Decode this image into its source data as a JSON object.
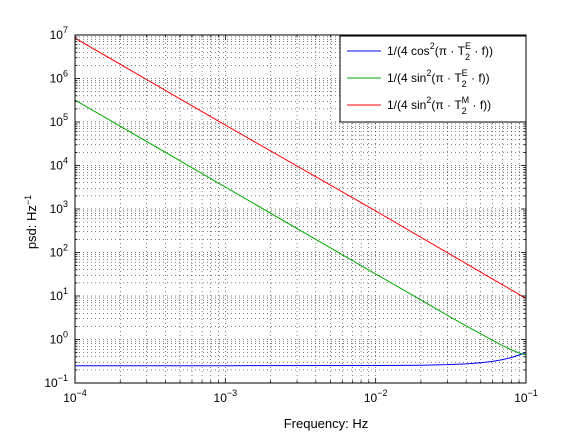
{
  "chart_data": {
    "type": "line",
    "xlabel": "Frequency: Hz",
    "ylabel": "psd: Hz",
    "ylabel_exponent": "−1",
    "xscale": "log",
    "yscale": "log",
    "xlim": [
      0.0001,
      0.1
    ],
    "ylim": [
      0.1,
      10000000
    ],
    "x_ticks": [
      {
        "value": 0.0001,
        "base": "10",
        "exp": "−4"
      },
      {
        "value": 0.001,
        "base": "10",
        "exp": "−3"
      },
      {
        "value": 0.01,
        "base": "10",
        "exp": "−2"
      },
      {
        "value": 0.1,
        "base": "10",
        "exp": "−1"
      }
    ],
    "y_ticks": [
      {
        "value": 0.1,
        "base": "10",
        "exp": "−1"
      },
      {
        "value": 1,
        "base": "10",
        "exp": "0"
      },
      {
        "value": 10,
        "base": "10",
        "exp": "1"
      },
      {
        "value": 100,
        "base": "10",
        "exp": "2"
      },
      {
        "value": 1000,
        "base": "10",
        "exp": "3"
      },
      {
        "value": 10000,
        "base": "10",
        "exp": "4"
      },
      {
        "value": 100000,
        "base": "10",
        "exp": "5"
      },
      {
        "value": 1000000,
        "base": "10",
        "exp": "6"
      },
      {
        "value": 10000000,
        "base": "10",
        "exp": "7"
      }
    ],
    "grid": true,
    "legend_position": "top-right",
    "series": [
      {
        "legend": {
          "pre": "1/(4 cos",
          "sup": "2",
          "mid": "(π · T",
          "sub": "2",
          "sub_sup": "E",
          "post": " · f))"
        },
        "color": "#0000ff",
        "x": [
          0.0001,
          0.001,
          0.01,
          0.02,
          0.03,
          0.04,
          0.05,
          0.06,
          0.07,
          0.08,
          0.09,
          0.1
        ],
        "y": [
          0.25,
          0.25,
          0.252,
          0.256,
          0.264,
          0.276,
          0.293,
          0.315,
          0.345,
          0.385,
          0.44,
          0.5
        ]
      },
      {
        "legend": {
          "pre": "1/(4 sin",
          "sup": "2",
          "mid": "(π · T",
          "sub": "2",
          "sub_sup": "E",
          "post": " · f))"
        },
        "color": "#00aa00",
        "x": [
          0.0001,
          0.001,
          0.01,
          0.02,
          0.03,
          0.04,
          0.05,
          0.06,
          0.07,
          0.08,
          0.09,
          0.1
        ],
        "y": [
          320000,
          3200,
          32,
          8.1,
          3.6,
          2.05,
          1.35,
          0.95,
          0.72,
          0.58,
          0.49,
          0.44
        ]
      },
      {
        "legend": {
          "pre": "1/(4 sin",
          "sup": "2",
          "mid": "(π · T",
          "sub": "2",
          "sub_sup": "M",
          "post": " · f))"
        },
        "color": "#ff0000",
        "x": [
          0.0001,
          0.001,
          0.01,
          0.1
        ],
        "y": [
          8500000,
          85000,
          900,
          8.8
        ]
      }
    ]
  }
}
